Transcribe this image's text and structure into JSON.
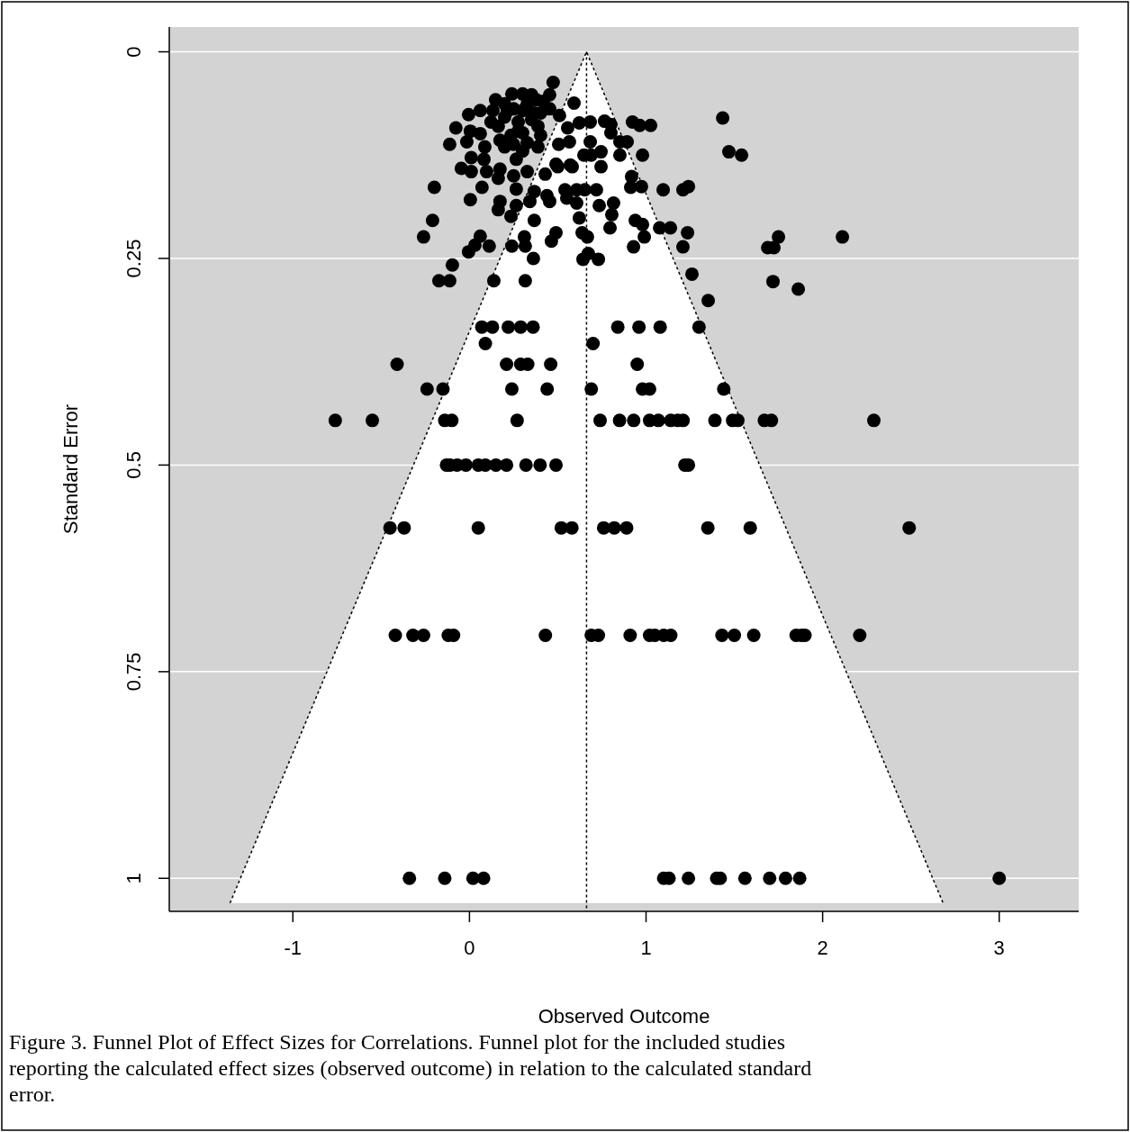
{
  "chart_data": {
    "type": "scatter",
    "xlabel": "Observed Outcome",
    "ylabel": "Standard Error",
    "annotations": [
      "Figure 3. Funnel Plot of Effect Sizes for Correlations. Funnel plot for the included studies reporting the calculated effect sizes (observed outcome) in relation to the calculated standard error."
    ],
    "xlim": [
      -1.7,
      3.45
    ],
    "ylim": [
      1.04,
      -0.03
    ],
    "xticks": [
      -1,
      0,
      1,
      2,
      3
    ],
    "yticks": [
      0,
      0.25,
      0.5,
      0.75,
      1
    ],
    "grid": "y",
    "marker": "circle",
    "ref_lines": [
      {
        "axis": "x",
        "value": 0.663,
        "line_style": "dotted",
        "color": "#000000"
      }
    ],
    "series": [
      {
        "type": "line",
        "color": "#000000",
        "line_style": "dotted",
        "marker": "none",
        "x": [
          -1.356,
          0.663,
          2.682
        ],
        "values": [
          1.03,
          0,
          1.03
        ]
      },
      {
        "type": "scatter",
        "color": "#000000",
        "x": [
          -0.34,
          -0.14,
          0.02,
          0.08,
          1.1,
          1.13,
          1.24,
          1.4,
          1.42,
          1.56,
          1.7,
          1.79,
          1.87,
          3.0,
          -0.42,
          -0.32,
          -0.26,
          -0.12,
          -0.09,
          0.43,
          0.69,
          0.73,
          0.91,
          1.02,
          1.05,
          1.1,
          1.14,
          1.43,
          1.5,
          1.61,
          1.85,
          1.88,
          1.9,
          2.21,
          -0.45,
          -0.37,
          0.05,
          0.52,
          0.58,
          0.76,
          0.82,
          0.89,
          1.35,
          1.59,
          2.49,
          -0.13,
          -0.11,
          -0.07,
          -0.02,
          0.05,
          0.09,
          0.15,
          0.21,
          0.32,
          0.4,
          0.49,
          1.22,
          1.24,
          -0.76,
          -0.55,
          -0.14,
          -0.1,
          0.27,
          0.74,
          0.85,
          0.93,
          1.02,
          1.07,
          1.14,
          1.18,
          1.21,
          1.39,
          1.49,
          1.52,
          1.67,
          1.71,
          2.29,
          -0.24,
          -0.15,
          0.24,
          0.44,
          0.69,
          0.98,
          1.02,
          1.44,
          -0.41,
          0.21,
          0.29,
          0.33,
          0.46,
          0.95,
          0.09,
          0.7,
          0.07,
          0.13,
          0.22,
          0.29,
          0.36,
          0.84,
          0.96,
          1.08,
          1.3,
          0.474,
          0.592,
          1.434,
          1.469,
          1.541,
          0.923,
          0.964,
          1.026,
          0.765,
          0.801,
          0.801,
          0.622,
          0.684,
          0.852,
          0.893,
          0.684,
          0.566,
          0.51,
          0.556,
          0.745,
          0.648,
          0.689,
          0.852,
          0.98,
          0.745,
          0.582,
          0.5,
          0.918,
          0.913,
          0.974,
          1.097,
          1.209,
          1.24,
          0.719,
          0.653,
          0.607,
          0.541,
          0.551,
          0.607,
          0.735,
          0.816,
          0.806,
          0.796,
          0.622,
          0.939,
          0.98,
          1.077,
          1.138,
          1.235,
          1.209,
          0.929,
          0.99,
          0.49,
          0.464,
          0.638,
          0.668,
          0.673,
          0.643,
          0.73,
          1.75,
          1.689,
          1.724,
          2.112,
          1.26,
          1.719,
          1.352,
          1.862,
          0.24,
          0.301,
          0.352,
          0.454,
          0.418,
          -0.005,
          0.061,
          0.133,
          0.214,
          0.301,
          0.367,
          -0.077,
          0.005,
          -0.015,
          -0.112,
          0.061,
          0.163,
          0.235,
          0.301,
          0.388,
          0.199,
          0.301,
          0.388,
          0.265,
          0.01,
          0.082,
          0.087,
          -0.046,
          0.01,
          0.097,
          0.173,
          0.25,
          0.327,
          0.429,
          0.505,
          0.49,
          0.571,
          0.071,
          0.163,
          -0.199,
          0.005,
          0.265,
          0.367,
          0.439,
          0.454,
          0.173,
          0.163,
          0.235,
          0.265,
          0.342,
          0.367,
          -0.209,
          -0.26,
          0.061,
          0.031,
          0.112,
          -0.005,
          0.24,
          0.311,
          0.316,
          0.362,
          -0.097,
          -0.173,
          -0.112,
          0.138,
          0.316,
          0.148,
          0.199,
          0.25,
          0.327,
          0.378,
          0.122,
          0.199,
          0.276,
          0.352,
          0.173,
          0.25,
          0.327,
          0.403,
          0.403,
          0.454,
          0.276
        ],
        "values": [
          1,
          1,
          1,
          1,
          1,
          1,
          1,
          1,
          1,
          1,
          1,
          1,
          1,
          1,
          0.706,
          0.706,
          0.706,
          0.706,
          0.706,
          0.706,
          0.706,
          0.706,
          0.706,
          0.706,
          0.706,
          0.706,
          0.706,
          0.706,
          0.706,
          0.706,
          0.706,
          0.706,
          0.706,
          0.706,
          0.576,
          0.576,
          0.576,
          0.576,
          0.576,
          0.576,
          0.576,
          0.576,
          0.576,
          0.576,
          0.576,
          0.5,
          0.5,
          0.5,
          0.5,
          0.5,
          0.5,
          0.5,
          0.5,
          0.5,
          0.5,
          0.5,
          0.5,
          0.5,
          0.446,
          0.446,
          0.446,
          0.446,
          0.446,
          0.446,
          0.446,
          0.446,
          0.446,
          0.446,
          0.446,
          0.446,
          0.446,
          0.446,
          0.446,
          0.446,
          0.446,
          0.446,
          0.446,
          0.408,
          0.408,
          0.408,
          0.408,
          0.408,
          0.408,
          0.408,
          0.408,
          0.378,
          0.378,
          0.378,
          0.378,
          0.378,
          0.378,
          0.353,
          0.353,
          0.333,
          0.333,
          0.333,
          0.333,
          0.333,
          0.333,
          0.333,
          0.333,
          0.333,
          0.037,
          0.062,
          0.08,
          0.121,
          0.125,
          0.085,
          0.089,
          0.089,
          0.084,
          0.088,
          0.098,
          0.086,
          0.085,
          0.109,
          0.109,
          0.109,
          0.109,
          0.077,
          0.092,
          0.121,
          0.125,
          0.125,
          0.125,
          0.125,
          0.139,
          0.139,
          0.139,
          0.151,
          0.164,
          0.163,
          0.167,
          0.167,
          0.163,
          0.167,
          0.167,
          0.167,
          0.167,
          0.177,
          0.183,
          0.186,
          0.183,
          0.197,
          0.213,
          0.201,
          0.204,
          0.209,
          0.213,
          0.213,
          0.219,
          0.236,
          0.236,
          0.224,
          0.219,
          0.229,
          0.219,
          0.224,
          0.244,
          0.251,
          0.251,
          0.224,
          0.237,
          0.237,
          0.224,
          0.269,
          0.278,
          0.301,
          0.287,
          0.051,
          0.051,
          0.052,
          0.052,
          0.06,
          0.076,
          0.071,
          0.071,
          0.072,
          0.071,
          0.074,
          0.092,
          0.096,
          0.109,
          0.112,
          0.099,
          0.09,
          0.101,
          0.098,
          0.09,
          0.115,
          0.12,
          0.115,
          0.13,
          0.128,
          0.13,
          0.115,
          0.141,
          0.145,
          0.145,
          0.142,
          0.15,
          0.145,
          0.148,
          0.112,
          0.136,
          0.137,
          0.164,
          0.153,
          0.164,
          0.179,
          0.166,
          0.169,
          0.174,
          0.181,
          0.181,
          0.191,
          0.199,
          0.186,
          0.181,
          0.204,
          0.204,
          0.224,
          0.223,
          0.234,
          0.235,
          0.242,
          0.235,
          0.224,
          0.235,
          0.25,
          0.258,
          0.277,
          0.277,
          0.277,
          0.277,
          0.058,
          0.063,
          0.069,
          0.063,
          0.058,
          0.085,
          0.079,
          0.085,
          0.082,
          0.107,
          0.112,
          0.11,
          0.101,
          0.074,
          0.069,
          0.096
        ]
      }
    ]
  }
}
